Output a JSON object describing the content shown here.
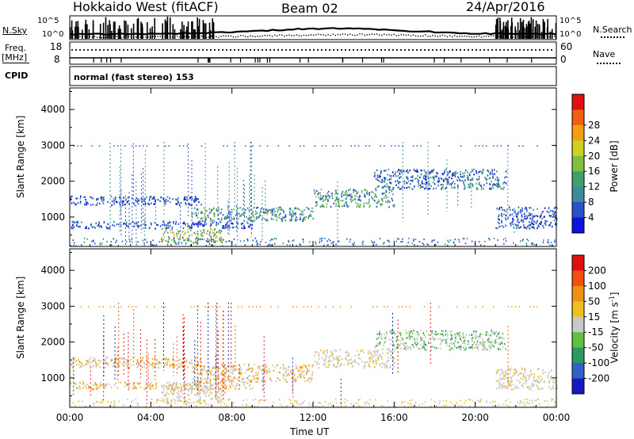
{
  "header": {
    "station": "Hokkaido West (fitACF)",
    "beam": "Beam 02",
    "date": "24/Apr/2016"
  },
  "strip_panel": {
    "n_sky_label": "N.Sky",
    "n_search_label": "N.Search",
    "left_ticks": [
      "10^5",
      "10^0"
    ],
    "right_ticks": [
      "10^5",
      "10^0"
    ],
    "freq_label": "Freq.",
    "freq_unit": "[MHz]",
    "freq_ticks": [
      "18",
      "8"
    ],
    "nave_label": "Nave",
    "nave_ticks": [
      "60",
      "0"
    ],
    "cpid_label": "CPID",
    "cpid_text": "normal (fast stereo) 153"
  },
  "chart_data": [
    {
      "type": "heatmap",
      "name": "power-panel",
      "ylabel": "Slant Range [km]",
      "xlabel": "",
      "x_ticks": [
        "00:00",
        "04:00",
        "08:00",
        "12:00",
        "16:00",
        "20:00",
        "00:00"
      ],
      "x_range_hours": [
        0,
        24
      ],
      "y_ticks": [
        1000,
        2000,
        3000,
        4000
      ],
      "ylim": [
        180,
        4600
      ],
      "colorbar": {
        "label": "Power [dB]",
        "ticks": [
          "4",
          "8",
          "12",
          "16",
          "20",
          "24",
          "28"
        ],
        "colors": [
          "#1010e0",
          "#2a50c8",
          "#3c8aa0",
          "#40a070",
          "#80c040",
          "#d0d020",
          "#f0a010",
          "#f06010",
          "#e01010"
        ]
      },
      "scatter_bands": [
        {
          "range_km": [
            1350,
            1600
          ],
          "x_hours": [
            0,
            6.5
          ],
          "level": "blue"
        },
        {
          "range_km": [
            700,
            900
          ],
          "x_hours": [
            0,
            9
          ],
          "level": "blue"
        },
        {
          "range_km": [
            300,
            700
          ],
          "x_hours": [
            4.5,
            7.5
          ],
          "level": "green-orange"
        },
        {
          "range_km": [
            900,
            1300
          ],
          "x_hours": [
            6,
            12
          ],
          "level": "green"
        },
        {
          "range_km": [
            1300,
            1800
          ],
          "x_hours": [
            12,
            16
          ],
          "level": "green-blue"
        },
        {
          "range_km": [
            1800,
            2350
          ],
          "x_hours": [
            15,
            21.5
          ],
          "level": "blue-green"
        },
        {
          "range_km": [
            700,
            1300
          ],
          "x_hours": [
            21,
            24
          ],
          "level": "blue"
        }
      ]
    },
    {
      "type": "heatmap",
      "name": "velocity-panel",
      "ylabel": "Slant Range [km]",
      "xlabel": "Time UT",
      "x_ticks": [
        "00:00",
        "04:00",
        "08:00",
        "12:00",
        "16:00",
        "20:00",
        "00:00"
      ],
      "x_range_hours": [
        0,
        24
      ],
      "y_ticks": [
        1000,
        2000,
        3000,
        4000
      ],
      "ylim": [
        180,
        4600
      ],
      "colorbar": {
        "label": "Velocity [m s",
        "label_sup": "-1",
        "label_end": "]",
        "ticks": [
          "200",
          "100",
          "50",
          "15",
          "-15",
          "-50",
          "-100",
          "-200"
        ],
        "colors": [
          "#1818c0",
          "#3060c8",
          "#2a9a60",
          "#60c040",
          "#c8c8c8",
          "#f0c020",
          "#f09010",
          "#f05010",
          "#e01010"
        ]
      },
      "scatter_bands": [
        {
          "range_km": [
            1300,
            1600
          ],
          "x_hours": [
            0,
            6.5
          ],
          "level": "gray-orange"
        },
        {
          "range_km": [
            700,
            900
          ],
          "x_hours": [
            0,
            9
          ],
          "level": "gray-orange"
        },
        {
          "range_km": [
            300,
            900
          ],
          "x_hours": [
            4.5,
            7.5
          ],
          "level": "gray"
        },
        {
          "range_km": [
            900,
            1400
          ],
          "x_hours": [
            6,
            12
          ],
          "level": "gray-orange"
        },
        {
          "range_km": [
            1300,
            1800
          ],
          "x_hours": [
            12,
            16
          ],
          "level": "gray"
        },
        {
          "range_km": [
            1800,
            2350
          ],
          "x_hours": [
            15,
            21.5
          ],
          "level": "gray-green"
        },
        {
          "range_km": [
            700,
            1300
          ],
          "x_hours": [
            21,
            24
          ],
          "level": "gray"
        }
      ]
    }
  ]
}
